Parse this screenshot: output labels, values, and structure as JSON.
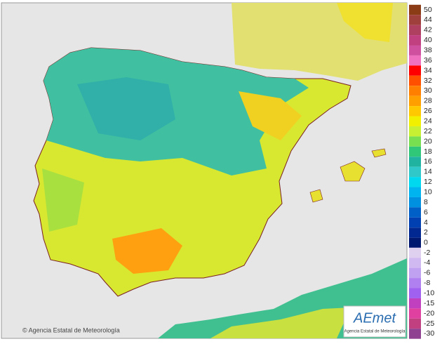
{
  "credit": "© Agencia Estatal de Meteorología",
  "logo": {
    "name": "AEmet",
    "subtitle": "Agencia Estatal de Meteorología"
  },
  "legend": {
    "positive": [
      {
        "value": 50,
        "color": "#8c3c14"
      },
      {
        "value": 44,
        "color": "#a0403c"
      },
      {
        "value": 42,
        "color": "#b04060"
      },
      {
        "value": 40,
        "color": "#c04080"
      },
      {
        "value": 38,
        "color": "#d050a0"
      },
      {
        "value": 36,
        "color": "#f070c0"
      },
      {
        "value": 34,
        "color": "#ff0000"
      },
      {
        "value": 32,
        "color": "#ff5000"
      },
      {
        "value": 30,
        "color": "#ff8000"
      },
      {
        "value": 28,
        "color": "#ffa000"
      },
      {
        "value": 26,
        "color": "#ffc800"
      },
      {
        "value": 24,
        "color": "#f0f000"
      },
      {
        "value": 22,
        "color": "#c8f032"
      },
      {
        "value": 20,
        "color": "#78e050"
      },
      {
        "value": 18,
        "color": "#30c878"
      },
      {
        "value": 16,
        "color": "#20b4a0"
      },
      {
        "value": 14,
        "color": "#30c8c8"
      },
      {
        "value": 12,
        "color": "#00d8f0"
      },
      {
        "value": 10,
        "color": "#00b4f0"
      },
      {
        "value": 8,
        "color": "#0090e0"
      },
      {
        "value": 6,
        "color": "#0060c8"
      },
      {
        "value": 4,
        "color": "#0040b0"
      },
      {
        "value": 2,
        "color": "#002890"
      },
      {
        "value": 0,
        "color": "#001870"
      }
    ],
    "negative": [
      {
        "value": -2,
        "color": "#e0d0f0"
      },
      {
        "value": -4,
        "color": "#d0b8f0"
      },
      {
        "value": -6,
        "color": "#c0a0f0"
      },
      {
        "value": -8,
        "color": "#b080f0"
      },
      {
        "value": -10,
        "color": "#a060f0"
      },
      {
        "value": -15,
        "color": "#c040c0"
      },
      {
        "value": -20,
        "color": "#e040a0"
      },
      {
        "value": -25,
        "color": "#c04080"
      },
      {
        "value": -30,
        "color": "#904090"
      }
    ]
  }
}
